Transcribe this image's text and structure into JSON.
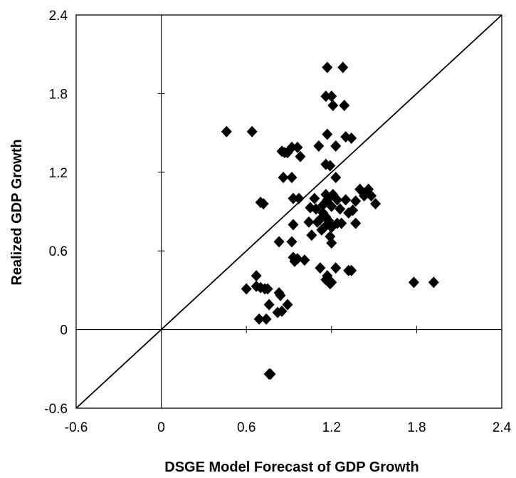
{
  "chart_data": {
    "type": "scatter",
    "title": "",
    "xlabel": "DSGE Model Forecast of GDP Growth",
    "ylabel": "Realized GDP Growth",
    "xlim": [
      -0.6,
      2.4
    ],
    "ylim": [
      -0.6,
      2.4
    ],
    "xticks": [
      -0.6,
      0,
      0.6,
      1.2,
      1.8,
      2.4
    ],
    "yticks": [
      -0.6,
      0,
      0.6,
      1.2,
      1.8,
      2.4
    ],
    "xtick_labels": [
      "-0.6",
      "0",
      "0.6",
      "1.2",
      "1.8",
      "2.4"
    ],
    "ytick_labels": [
      "-0.6",
      "0",
      "0.6",
      "1.2",
      "1.8",
      "2.4"
    ],
    "grid": false,
    "legend": "none",
    "marker": "diamond",
    "marker_color": "#000000",
    "reference_line": {
      "type": "45-degree",
      "from": [
        -0.6,
        -0.6
      ],
      "to": [
        2.4,
        2.4
      ]
    },
    "series": [
      {
        "points": [
          [
            0.46,
            1.51
          ],
          [
            0.64,
            1.51
          ],
          [
            1.17,
            2.0
          ],
          [
            1.28,
            2.0
          ],
          [
            1.16,
            1.78
          ],
          [
            1.2,
            1.78
          ],
          [
            1.21,
            1.71
          ],
          [
            1.29,
            1.71
          ],
          [
            1.17,
            1.49
          ],
          [
            1.3,
            1.47
          ],
          [
            1.34,
            1.46
          ],
          [
            1.11,
            1.4
          ],
          [
            1.23,
            1.4
          ],
          [
            0.92,
            1.39
          ],
          [
            0.96,
            1.39
          ],
          [
            0.85,
            1.36
          ],
          [
            0.87,
            1.35
          ],
          [
            0.89,
            1.35
          ],
          [
            0.98,
            1.32
          ],
          [
            1.16,
            1.26
          ],
          [
            1.19,
            1.25
          ],
          [
            1.23,
            1.16
          ],
          [
            0.86,
            1.16
          ],
          [
            0.92,
            1.16
          ],
          [
            1.4,
            1.07
          ],
          [
            1.46,
            1.07
          ],
          [
            1.16,
            1.03
          ],
          [
            1.21,
            1.03
          ],
          [
            1.43,
            1.02
          ],
          [
            1.48,
            1.02
          ],
          [
            0.93,
            1.0
          ],
          [
            0.97,
            1.0
          ],
          [
            1.08,
            1.0
          ],
          [
            1.17,
            0.99
          ],
          [
            1.24,
            0.99
          ],
          [
            1.3,
            0.99
          ],
          [
            1.37,
            0.98
          ],
          [
            1.51,
            0.96
          ],
          [
            0.7,
            0.97
          ],
          [
            0.72,
            0.96
          ],
          [
            1.14,
            0.95
          ],
          [
            1.2,
            0.94
          ],
          [
            1.05,
            0.93
          ],
          [
            1.09,
            0.92
          ],
          [
            1.26,
            0.92
          ],
          [
            1.35,
            0.91
          ],
          [
            1.14,
            0.89
          ],
          [
            1.32,
            0.89
          ],
          [
            1.16,
            0.86
          ],
          [
            1.12,
            0.84
          ],
          [
            1.18,
            0.83
          ],
          [
            1.04,
            0.82
          ],
          [
            1.1,
            0.82
          ],
          [
            1.24,
            0.81
          ],
          [
            1.27,
            0.81
          ],
          [
            1.37,
            0.81
          ],
          [
            0.93,
            0.8
          ],
          [
            1.15,
            0.78
          ],
          [
            1.2,
            0.78
          ],
          [
            1.13,
            0.76
          ],
          [
            1.06,
            0.72
          ],
          [
            1.19,
            0.71
          ],
          [
            0.83,
            0.67
          ],
          [
            0.92,
            0.67
          ],
          [
            1.2,
            0.66
          ],
          [
            0.93,
            0.55
          ],
          [
            0.96,
            0.54
          ],
          [
            1.01,
            0.53
          ],
          [
            0.94,
            0.52
          ],
          [
            1.12,
            0.47
          ],
          [
            1.23,
            0.47
          ],
          [
            1.32,
            0.45
          ],
          [
            1.34,
            0.45
          ],
          [
            0.67,
            0.41
          ],
          [
            1.17,
            0.41
          ],
          [
            1.16,
            0.38
          ],
          [
            1.2,
            0.36
          ],
          [
            1.19,
            0.35
          ],
          [
            1.78,
            0.36
          ],
          [
            1.92,
            0.36
          ],
          [
            0.67,
            0.33
          ],
          [
            0.7,
            0.32
          ],
          [
            0.6,
            0.31
          ],
          [
            0.73,
            0.31
          ],
          [
            0.75,
            0.31
          ],
          [
            0.83,
            0.28
          ],
          [
            0.84,
            0.26
          ],
          [
            0.76,
            0.19
          ],
          [
            0.89,
            0.19
          ],
          [
            0.85,
            0.14
          ],
          [
            0.82,
            0.13
          ],
          [
            0.69,
            0.08
          ],
          [
            0.74,
            0.08
          ],
          [
            0.77,
            -0.34
          ],
          [
            0.76,
            -0.34
          ]
        ]
      }
    ]
  }
}
